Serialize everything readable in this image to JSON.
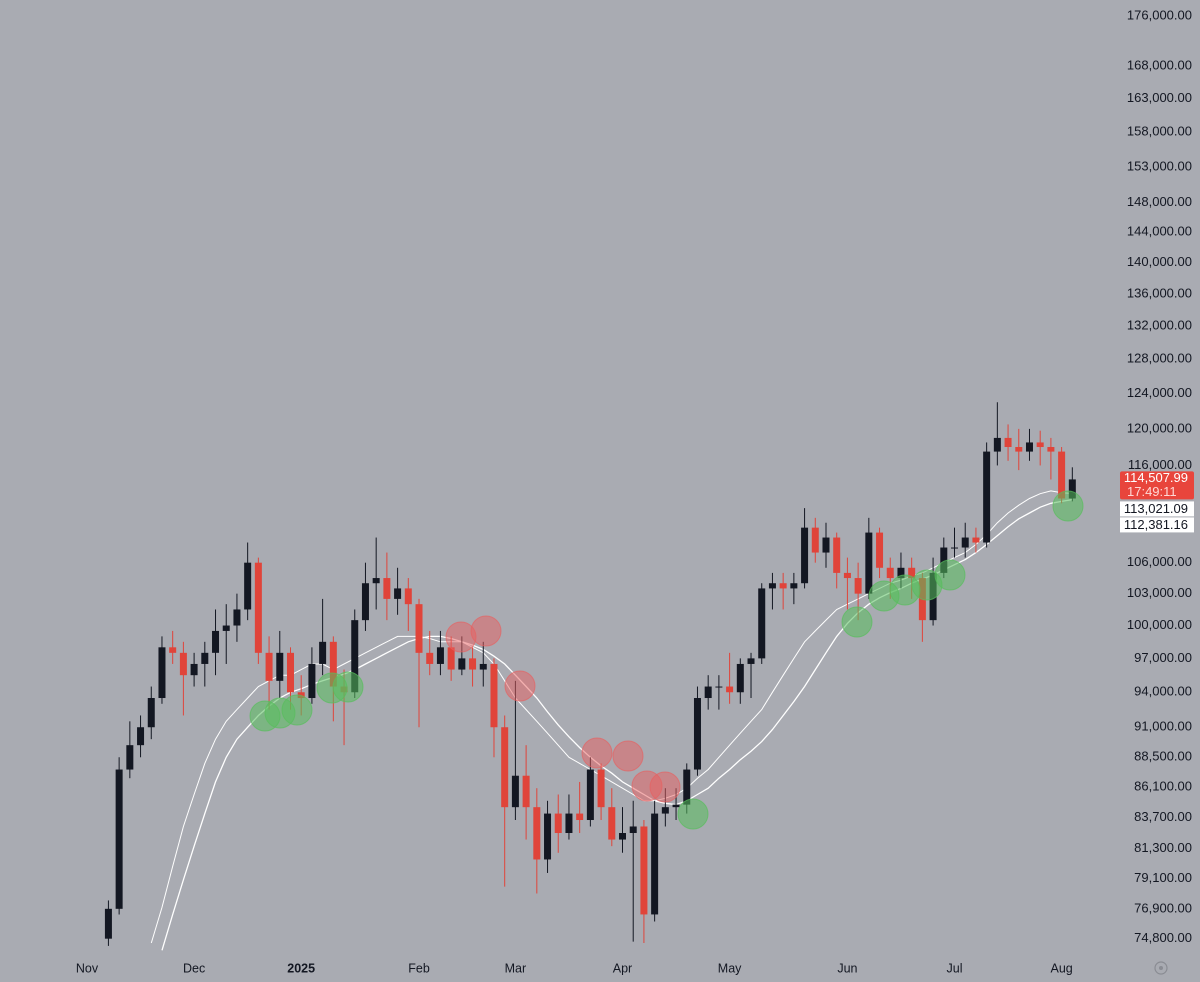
{
  "chart_data": {
    "type": "candlestick",
    "log_scale": true,
    "background": "#a9abb2",
    "up_color": "#131722",
    "down_color": "#e0443a",
    "categories": [
      "Nov",
      null,
      null,
      null,
      null,
      null,
      null,
      null,
      null,
      null,
      "Dec",
      null,
      null,
      null,
      null,
      null,
      null,
      null,
      null,
      null,
      "2025",
      null,
      null,
      null,
      null,
      null,
      null,
      null,
      null,
      null,
      null,
      "Feb",
      null,
      null,
      null,
      null,
      null,
      null,
      null,
      null,
      "Mar",
      null,
      null,
      null,
      null,
      null,
      null,
      null,
      null,
      null,
      "Apr",
      null,
      null,
      null,
      null,
      null,
      null,
      null,
      null,
      null,
      "May",
      null,
      null,
      null,
      null,
      null,
      null,
      null,
      null,
      null,
      null,
      "Jun",
      null,
      null,
      null,
      null,
      null,
      null,
      null,
      null,
      null,
      "Jul",
      null,
      null,
      null,
      null,
      null,
      null,
      null,
      null,
      null,
      "Aug",
      null
    ],
    "open": [
      null,
      null,
      74800,
      76900,
      87500,
      89500,
      91000,
      93500,
      98000,
      97500,
      95500,
      96500,
      97500,
      99500,
      100000,
      101500,
      106000,
      97500,
      95000,
      97500,
      94000,
      93500,
      96500,
      98500,
      94500,
      94000,
      100500,
      104000,
      104500,
      102500,
      103500,
      102000,
      97500,
      96500,
      98000,
      96000,
      97000,
      96000,
      96500,
      91000,
      84500,
      87000,
      84500,
      80500,
      84000,
      82500,
      84000,
      83500,
      87500,
      84500,
      82000,
      82500,
      83000,
      76500,
      84000,
      84500,
      84700,
      87500,
      93500,
      94500,
      94500,
      94000,
      96500,
      97000,
      103500,
      104000,
      103500,
      104000,
      109500,
      107000,
      108500,
      105000,
      104500,
      103000,
      109000,
      105500,
      104500,
      105500,
      104500,
      100500,
      105000,
      107500,
      107500,
      108500,
      108000,
      117500,
      119000,
      118000,
      117500,
      118500,
      118000,
      117500,
      112500
    ],
    "high": [
      null,
      null,
      77500,
      88500,
      91500,
      92000,
      94500,
      99000,
      99500,
      98500,
      97500,
      98500,
      101500,
      102000,
      103000,
      108000,
      106500,
      99000,
      99500,
      98000,
      95500,
      98000,
      102500,
      99000,
      96000,
      101500,
      106000,
      108500,
      107000,
      105500,
      104500,
      102500,
      99500,
      99500,
      99000,
      99000,
      98000,
      98500,
      97000,
      92000,
      95000,
      89500,
      86000,
      85000,
      85500,
      85500,
      86500,
      88500,
      88000,
      86000,
      84500,
      85000,
      83500,
      85000,
      86000,
      86000,
      88000,
      94500,
      95500,
      95500,
      97500,
      97000,
      97500,
      104000,
      105000,
      105000,
      105000,
      111500,
      110500,
      110000,
      109000,
      106500,
      106000,
      110500,
      109500,
      106500,
      107000,
      106500,
      105000,
      106500,
      108500,
      109500,
      110000,
      109500,
      118500,
      123000,
      120500,
      120000,
      120000,
      119800,
      119000,
      118000,
      115800
    ],
    "low": [
      null,
      null,
      74300,
      76500,
      86800,
      88500,
      90000,
      93000,
      96500,
      92000,
      94500,
      94500,
      95500,
      96500,
      98500,
      100500,
      96500,
      92500,
      93500,
      92500,
      92000,
      93000,
      95500,
      91500,
      89500,
      93500,
      99500,
      101500,
      100500,
      101000,
      99500,
      91000,
      95500,
      95500,
      95000,
      95500,
      94500,
      94500,
      88500,
      78500,
      83500,
      82000,
      78000,
      79500,
      81000,
      82000,
      82500,
      83000,
      83500,
      81500,
      81000,
      74600,
      74500,
      76000,
      83000,
      83500,
      84000,
      87000,
      92500,
      92500,
      93000,
      93000,
      93500,
      96500,
      101500,
      101500,
      102000,
      103500,
      106000,
      105500,
      103500,
      101500,
      100500,
      102500,
      104500,
      102500,
      103500,
      102500,
      98500,
      100000,
      104500,
      106500,
      106500,
      107000,
      107500,
      116000,
      116500,
      115500,
      116500,
      116000,
      114500,
      112000,
      112200
    ],
    "close": [
      null,
      null,
      76900,
      87500,
      89500,
      91000,
      93500,
      98000,
      97500,
      95500,
      96500,
      97500,
      99500,
      100000,
      101500,
      106000,
      97500,
      95000,
      97500,
      94000,
      93500,
      96500,
      98500,
      94500,
      94000,
      100500,
      104000,
      104500,
      102500,
      103500,
      102000,
      97500,
      96500,
      98000,
      96000,
      97000,
      96000,
      96500,
      91000,
      84500,
      87000,
      84500,
      80500,
      84000,
      82500,
      84000,
      83500,
      87500,
      84500,
      82000,
      82500,
      83000,
      76500,
      84000,
      84500,
      84700,
      87500,
      93500,
      94500,
      94500,
      94000,
      96500,
      97000,
      103500,
      104000,
      103500,
      104000,
      109500,
      107000,
      108500,
      105000,
      104500,
      103000,
      109000,
      105500,
      104500,
      105500,
      104500,
      100500,
      105000,
      107500,
      107500,
      108500,
      108000,
      117500,
      119000,
      118000,
      117500,
      118500,
      118000,
      117500,
      112500,
      114507.99
    ],
    "lines": [
      {
        "color": "#ffffff",
        "last_label": "113,021.09",
        "values": [
          null,
          null,
          null,
          null,
          null,
          null,
          74500,
          77000,
          80000,
          83000,
          85500,
          88000,
          90000,
          91500,
          92500,
          93500,
          94500,
          95000,
          95500,
          95500,
          96000,
          96500,
          96500,
          96000,
          96500,
          97000,
          97500,
          98000,
          98500,
          99000,
          99000,
          99000,
          98800,
          98500,
          98500,
          98500,
          98000,
          97500,
          96500,
          95000,
          93500,
          92500,
          91500,
          90500,
          89500,
          88500,
          88000,
          87500,
          87000,
          86500,
          86000,
          85500,
          85000,
          85000,
          85200,
          85500,
          86000,
          86800,
          87500,
          88500,
          89500,
          90500,
          91500,
          92500,
          94000,
          95500,
          97000,
          98500,
          99500,
          100500,
          101500,
          102000,
          102500,
          103000,
          103500,
          104000,
          104300,
          104700,
          105000,
          105500,
          106000,
          106500,
          107000,
          107800,
          108800,
          110000,
          111000,
          111800,
          112500,
          113000,
          113300,
          113100,
          113021.09
        ]
      },
      {
        "color": "#ffffff",
        "last_label": "112,381.16",
        "values": [
          null,
          null,
          null,
          null,
          null,
          null,
          null,
          74000,
          76500,
          79000,
          81500,
          84000,
          86500,
          88500,
          90000,
          91000,
          92000,
          92800,
          93500,
          94000,
          94300,
          94700,
          95000,
          95300,
          95600,
          96000,
          96500,
          97000,
          97500,
          98000,
          98500,
          98800,
          99000,
          99000,
          98800,
          98500,
          98200,
          97800,
          97200,
          96500,
          95500,
          94500,
          93500,
          92300,
          91200,
          90200,
          89300,
          88500,
          87800,
          87200,
          86500,
          86000,
          85500,
          85000,
          84800,
          84700,
          85000,
          85500,
          86000,
          86800,
          87500,
          88300,
          89000,
          89800,
          90800,
          92000,
          93200,
          94500,
          96000,
          97500,
          99000,
          100200,
          101200,
          102000,
          102600,
          103100,
          103500,
          104000,
          104400,
          104800,
          105300,
          105800,
          106300,
          107000,
          107800,
          108700,
          109600,
          110400,
          111000,
          111600,
          112000,
          112200,
          112381.16
        ]
      }
    ],
    "last_price": {
      "value": 114507.99,
      "label": "114,507.99"
    },
    "last_price_color": "#e8453c",
    "countdown": "17:49:11",
    "ylim": [
      73200,
      178600
    ],
    "yticks": [
      {
        "value": 176000,
        "label": "176,000.00"
      },
      {
        "value": 168000,
        "label": "168,000.00"
      },
      {
        "value": 163000,
        "label": "163,000.00"
      },
      {
        "value": 158000,
        "label": "158,000.00"
      },
      {
        "value": 153000,
        "label": "153,000.00"
      },
      {
        "value": 148000,
        "label": "148,000.00"
      },
      {
        "value": 144000,
        "label": "144,000.00"
      },
      {
        "value": 140000,
        "label": "140,000.00"
      },
      {
        "value": 136000,
        "label": "136,000.00"
      },
      {
        "value": 132000,
        "label": "132,000.00"
      },
      {
        "value": 128000,
        "label": "128,000.00"
      },
      {
        "value": 124000,
        "label": "124,000.00"
      },
      {
        "value": 120000,
        "label": "120,000.00"
      },
      {
        "value": 116000,
        "label": "116,000.00"
      },
      {
        "value": 106000,
        "label": "106,000.00"
      },
      {
        "value": 103000,
        "label": "103,000.00"
      },
      {
        "value": 100000,
        "label": "100,000.00"
      },
      {
        "value": 97000,
        "label": "97,000.00"
      },
      {
        "value": 94000,
        "label": "94,000.00"
      },
      {
        "value": 91000,
        "label": "91,000.00"
      },
      {
        "value": 88500,
        "label": "88,500.00"
      },
      {
        "value": 86100,
        "label": "86,100.00"
      },
      {
        "value": 83700,
        "label": "83,700.00"
      },
      {
        "value": 81300,
        "label": "81,300.00"
      },
      {
        "value": 79100,
        "label": "79,100.00"
      },
      {
        "value": 76900,
        "label": "76,900.00"
      },
      {
        "value": 74800,
        "label": "74,800.00"
      }
    ]
  }
}
